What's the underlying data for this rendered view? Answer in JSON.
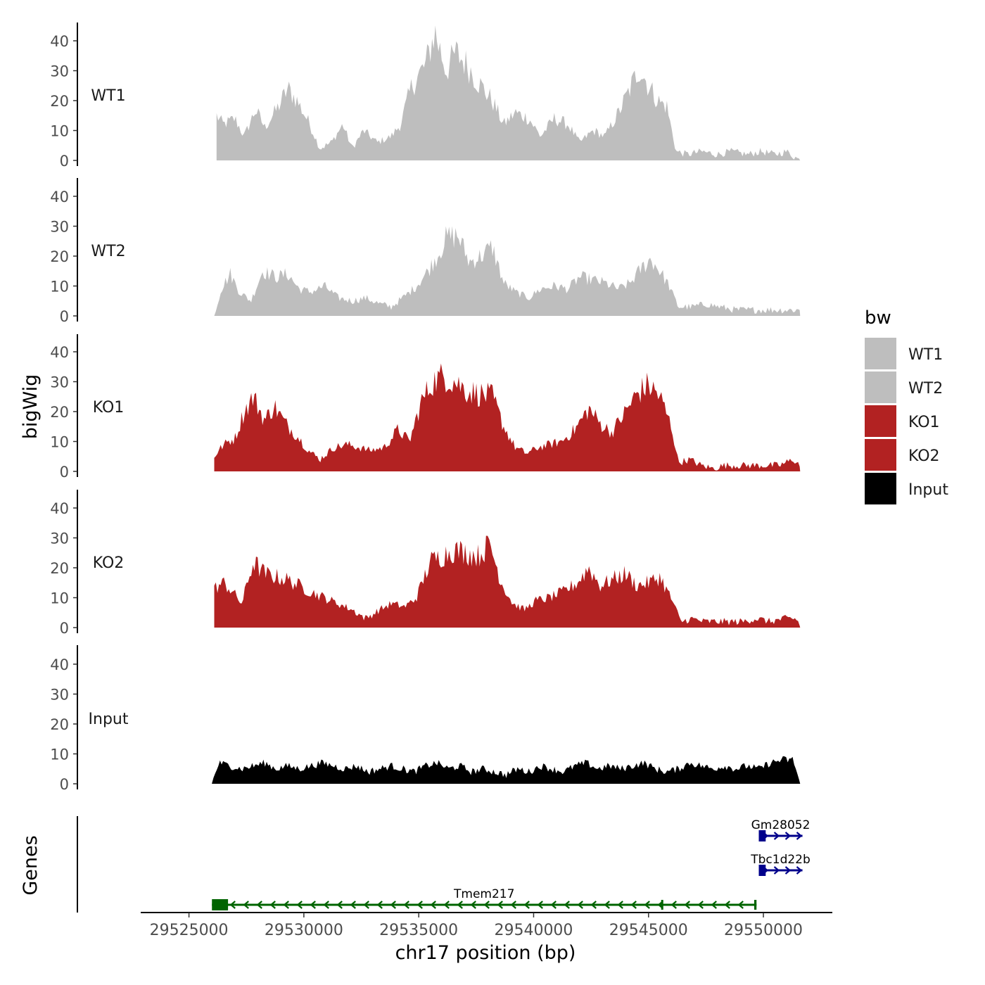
{
  "chart_data": {
    "type": "area",
    "genome": "chr17",
    "xlabel": "chr17 position (bp)",
    "ylabel_tracks": "bigWig",
    "ylabel_genes": "Genes",
    "xlim": [
      29522900,
      29553000
    ],
    "x_ticks": [
      29525000,
      29530000,
      29535000,
      29540000,
      29545000,
      29550000
    ],
    "x_tick_labels": [
      "29525000",
      "29530000",
      "29535000",
      "29540000",
      "29545000",
      "29550000"
    ],
    "ylim": [
      0,
      45
    ],
    "y_ticks": [
      0,
      10,
      20,
      30,
      40
    ],
    "y_tick_labels": [
      "0",
      "10",
      "20",
      "30",
      "40"
    ],
    "legend": {
      "title": "bw",
      "position": "right",
      "entries": [
        {
          "label": "WT1",
          "color": "#BEBEBE"
        },
        {
          "label": "WT2",
          "color": "#BEBEBE"
        },
        {
          "label": "KO1",
          "color": "#B22222"
        },
        {
          "label": "KO2",
          "color": "#B22222"
        },
        {
          "label": "Input",
          "color": "#000000"
        }
      ]
    },
    "series": [
      {
        "name": "WT1",
        "color": "#BEBEBE",
        "x_start": 29526200,
        "x_end": 29551600,
        "knots": [
          [
            29526200,
            15
          ],
          [
            29526500,
            12
          ],
          [
            29527000,
            14
          ],
          [
            29527400,
            8
          ],
          [
            29527900,
            17
          ],
          [
            29528300,
            11
          ],
          [
            29528900,
            18
          ],
          [
            29529300,
            24
          ],
          [
            29529700,
            20
          ],
          [
            29530200,
            13
          ],
          [
            29530700,
            4
          ],
          [
            29531200,
            6
          ],
          [
            29531700,
            12
          ],
          [
            29532100,
            4
          ],
          [
            29532600,
            10
          ],
          [
            29533200,
            6
          ],
          [
            29533800,
            8
          ],
          [
            29534200,
            12
          ],
          [
            29534700,
            25
          ],
          [
            29535300,
            32
          ],
          [
            29535700,
            43
          ],
          [
            29536200,
            30
          ],
          [
            29536600,
            36
          ],
          [
            29537100,
            32
          ],
          [
            29537600,
            26
          ],
          [
            29538200,
            20
          ],
          [
            29538700,
            12
          ],
          [
            29539200,
            16
          ],
          [
            29539800,
            14
          ],
          [
            29540300,
            8
          ],
          [
            29540900,
            14
          ],
          [
            29541500,
            12
          ],
          [
            29542000,
            6
          ],
          [
            29542600,
            10
          ],
          [
            29543100,
            8
          ],
          [
            29543700,
            16
          ],
          [
            29544200,
            24
          ],
          [
            29544600,
            31
          ],
          [
            29545000,
            25
          ],
          [
            29545400,
            20
          ],
          [
            29545800,
            18
          ],
          [
            29546200,
            3
          ],
          [
            29546700,
            2
          ],
          [
            29547300,
            3
          ],
          [
            29548000,
            2
          ],
          [
            29548600,
            3
          ],
          [
            29549300,
            2
          ],
          [
            29549900,
            3
          ],
          [
            29550500,
            2
          ],
          [
            29551000,
            3
          ],
          [
            29551600,
            0
          ]
        ]
      },
      {
        "name": "WT2",
        "color": "#BEBEBE",
        "x_start": 29526100,
        "x_end": 29551600,
        "knots": [
          [
            29526100,
            0
          ],
          [
            29526400,
            9
          ],
          [
            29526800,
            14
          ],
          [
            29527200,
            8
          ],
          [
            29527700,
            5
          ],
          [
            29528200,
            15
          ],
          [
            29528800,
            13
          ],
          [
            29529300,
            14
          ],
          [
            29529800,
            9
          ],
          [
            29530300,
            8
          ],
          [
            29530900,
            10
          ],
          [
            29531500,
            6
          ],
          [
            29532100,
            5
          ],
          [
            29532700,
            6
          ],
          [
            29533300,
            4
          ],
          [
            29533800,
            3
          ],
          [
            29534300,
            6
          ],
          [
            29534900,
            10
          ],
          [
            29535400,
            15
          ],
          [
            29535800,
            20
          ],
          [
            29536200,
            26
          ],
          [
            29536700,
            27
          ],
          [
            29537200,
            18
          ],
          [
            29537700,
            20
          ],
          [
            29538200,
            23
          ],
          [
            29538700,
            11
          ],
          [
            29539200,
            8
          ],
          [
            29539800,
            6
          ],
          [
            29540300,
            9
          ],
          [
            29540900,
            10
          ],
          [
            29541500,
            9
          ],
          [
            29542000,
            13
          ],
          [
            29542600,
            12
          ],
          [
            29543100,
            11
          ],
          [
            29543700,
            9
          ],
          [
            29544200,
            11
          ],
          [
            29544700,
            16
          ],
          [
            29545100,
            19
          ],
          [
            29545500,
            15
          ],
          [
            29545900,
            10
          ],
          [
            29546300,
            3
          ],
          [
            29546900,
            3
          ],
          [
            29547500,
            4
          ],
          [
            29548100,
            3
          ],
          [
            29548800,
            2
          ],
          [
            29549500,
            2
          ],
          [
            29550200,
            2
          ],
          [
            29550900,
            2
          ],
          [
            29551600,
            2
          ]
        ]
      },
      {
        "name": "KO1",
        "color": "#B22222",
        "x_start": 29526100,
        "x_end": 29551600,
        "knots": [
          [
            29526100,
            5
          ],
          [
            29526400,
            8
          ],
          [
            29526700,
            10
          ],
          [
            29527000,
            11
          ],
          [
            29527400,
            20
          ],
          [
            29527800,
            25
          ],
          [
            29528300,
            17
          ],
          [
            29528700,
            22
          ],
          [
            29529200,
            16
          ],
          [
            29529700,
            12
          ],
          [
            29530200,
            7
          ],
          [
            29530700,
            4
          ],
          [
            29531300,
            8
          ],
          [
            29531900,
            9
          ],
          [
            29532400,
            8
          ],
          [
            29532900,
            7
          ],
          [
            29533500,
            8
          ],
          [
            29534100,
            14
          ],
          [
            29534600,
            10
          ],
          [
            29535100,
            23
          ],
          [
            29535600,
            30
          ],
          [
            29536100,
            32
          ],
          [
            29536600,
            30
          ],
          [
            29537100,
            27
          ],
          [
            29537600,
            26
          ],
          [
            29538200,
            25
          ],
          [
            29538700,
            15
          ],
          [
            29539200,
            8
          ],
          [
            29539700,
            6
          ],
          [
            29540200,
            8
          ],
          [
            29540700,
            9
          ],
          [
            29541200,
            10
          ],
          [
            29541800,
            14
          ],
          [
            29542400,
            21
          ],
          [
            29542900,
            16
          ],
          [
            29543400,
            13
          ],
          [
            29544000,
            20
          ],
          [
            29544500,
            26
          ],
          [
            29545000,
            29
          ],
          [
            29545500,
            25
          ],
          [
            29546000,
            15
          ],
          [
            29546300,
            3
          ],
          [
            29546800,
            4
          ],
          [
            29547300,
            2
          ],
          [
            29547800,
            1
          ],
          [
            29548300,
            2
          ],
          [
            29548900,
            2
          ],
          [
            29549500,
            2
          ],
          [
            29550100,
            2
          ],
          [
            29550700,
            2
          ],
          [
            29551300,
            4
          ],
          [
            29551600,
            2
          ]
        ]
      },
      {
        "name": "KO2",
        "color": "#B22222",
        "x_start": 29526100,
        "x_end": 29551600,
        "knots": [
          [
            29526100,
            13
          ],
          [
            29526500,
            15
          ],
          [
            29526900,
            12
          ],
          [
            29527300,
            8
          ],
          [
            29527800,
            22
          ],
          [
            29528300,
            18
          ],
          [
            29528800,
            17
          ],
          [
            29529300,
            16
          ],
          [
            29529800,
            14
          ],
          [
            29530300,
            12
          ],
          [
            29530900,
            10
          ],
          [
            29531500,
            8
          ],
          [
            29532100,
            6
          ],
          [
            29532700,
            3
          ],
          [
            29533300,
            6
          ],
          [
            29533800,
            8
          ],
          [
            29534400,
            7
          ],
          [
            29534900,
            10
          ],
          [
            29535500,
            22
          ],
          [
            29536000,
            24
          ],
          [
            29536500,
            26
          ],
          [
            29537100,
            25
          ],
          [
            29537600,
            24
          ],
          [
            29538100,
            28
          ],
          [
            29538600,
            15
          ],
          [
            29539100,
            8
          ],
          [
            29539600,
            6
          ],
          [
            29540100,
            9
          ],
          [
            29540700,
            10
          ],
          [
            29541300,
            12
          ],
          [
            29541900,
            15
          ],
          [
            29542400,
            20
          ],
          [
            29542900,
            14
          ],
          [
            29543400,
            16
          ],
          [
            29544000,
            18
          ],
          [
            29544500,
            14
          ],
          [
            29545000,
            15
          ],
          [
            29545500,
            17
          ],
          [
            29546100,
            8
          ],
          [
            29546400,
            2
          ],
          [
            29546900,
            3
          ],
          [
            29547400,
            2
          ],
          [
            29547900,
            2
          ],
          [
            29548500,
            2
          ],
          [
            29549100,
            2
          ],
          [
            29549700,
            3
          ],
          [
            29550300,
            2
          ],
          [
            29550900,
            3
          ],
          [
            29551400,
            3
          ],
          [
            29551600,
            1
          ]
        ]
      },
      {
        "name": "Input",
        "color": "#000000",
        "x_start": 29526000,
        "x_end": 29551600,
        "knots": [
          [
            29526000,
            0
          ],
          [
            29526300,
            7
          ],
          [
            29526800,
            6
          ],
          [
            29527300,
            5
          ],
          [
            29527800,
            6
          ],
          [
            29528300,
            7
          ],
          [
            29528800,
            5
          ],
          [
            29529300,
            6
          ],
          [
            29529800,
            5
          ],
          [
            29530300,
            6
          ],
          [
            29530800,
            7
          ],
          [
            29531300,
            6
          ],
          [
            29531800,
            5
          ],
          [
            29532300,
            6
          ],
          [
            29532800,
            4
          ],
          [
            29533300,
            5
          ],
          [
            29533800,
            6
          ],
          [
            29534300,
            5
          ],
          [
            29534800,
            4
          ],
          [
            29535300,
            6
          ],
          [
            29535800,
            7
          ],
          [
            29536300,
            5
          ],
          [
            29536800,
            6
          ],
          [
            29537300,
            4
          ],
          [
            29537800,
            5
          ],
          [
            29538300,
            4
          ],
          [
            29538800,
            3
          ],
          [
            29539300,
            5
          ],
          [
            29539800,
            4
          ],
          [
            29540300,
            6
          ],
          [
            29540800,
            5
          ],
          [
            29541300,
            4
          ],
          [
            29541800,
            6
          ],
          [
            29542300,
            7
          ],
          [
            29542800,
            5
          ],
          [
            29543300,
            6
          ],
          [
            29543800,
            5
          ],
          [
            29544300,
            6
          ],
          [
            29544800,
            7
          ],
          [
            29545300,
            5
          ],
          [
            29545800,
            4
          ],
          [
            29546300,
            5
          ],
          [
            29546800,
            7
          ],
          [
            29547300,
            6
          ],
          [
            29547800,
            5
          ],
          [
            29548300,
            6
          ],
          [
            29548800,
            5
          ],
          [
            29549300,
            6
          ],
          [
            29549800,
            5
          ],
          [
            29550300,
            7
          ],
          [
            29550800,
            8
          ],
          [
            29551300,
            8
          ],
          [
            29551600,
            0
          ]
        ]
      }
    ],
    "genes": [
      {
        "name": "Gm28052",
        "strand": "+",
        "start": 29549800,
        "end": 29551700,
        "color": "#00008B",
        "row": 0,
        "exons": [
          [
            29549800,
            29550100
          ]
        ]
      },
      {
        "name": "Tbc1d22b",
        "strand": "+",
        "start": 29549800,
        "end": 29551700,
        "color": "#00008B",
        "row": 1,
        "exons": [
          [
            29549800,
            29550100
          ]
        ]
      },
      {
        "name": "Tmem217",
        "strand": "-",
        "start": 29526000,
        "end": 29549700,
        "color": "#006400",
        "row": 2,
        "exons": [
          [
            29526000,
            29526700
          ],
          [
            29545550,
            29545600
          ],
          [
            29549600,
            29549700
          ]
        ]
      }
    ]
  }
}
